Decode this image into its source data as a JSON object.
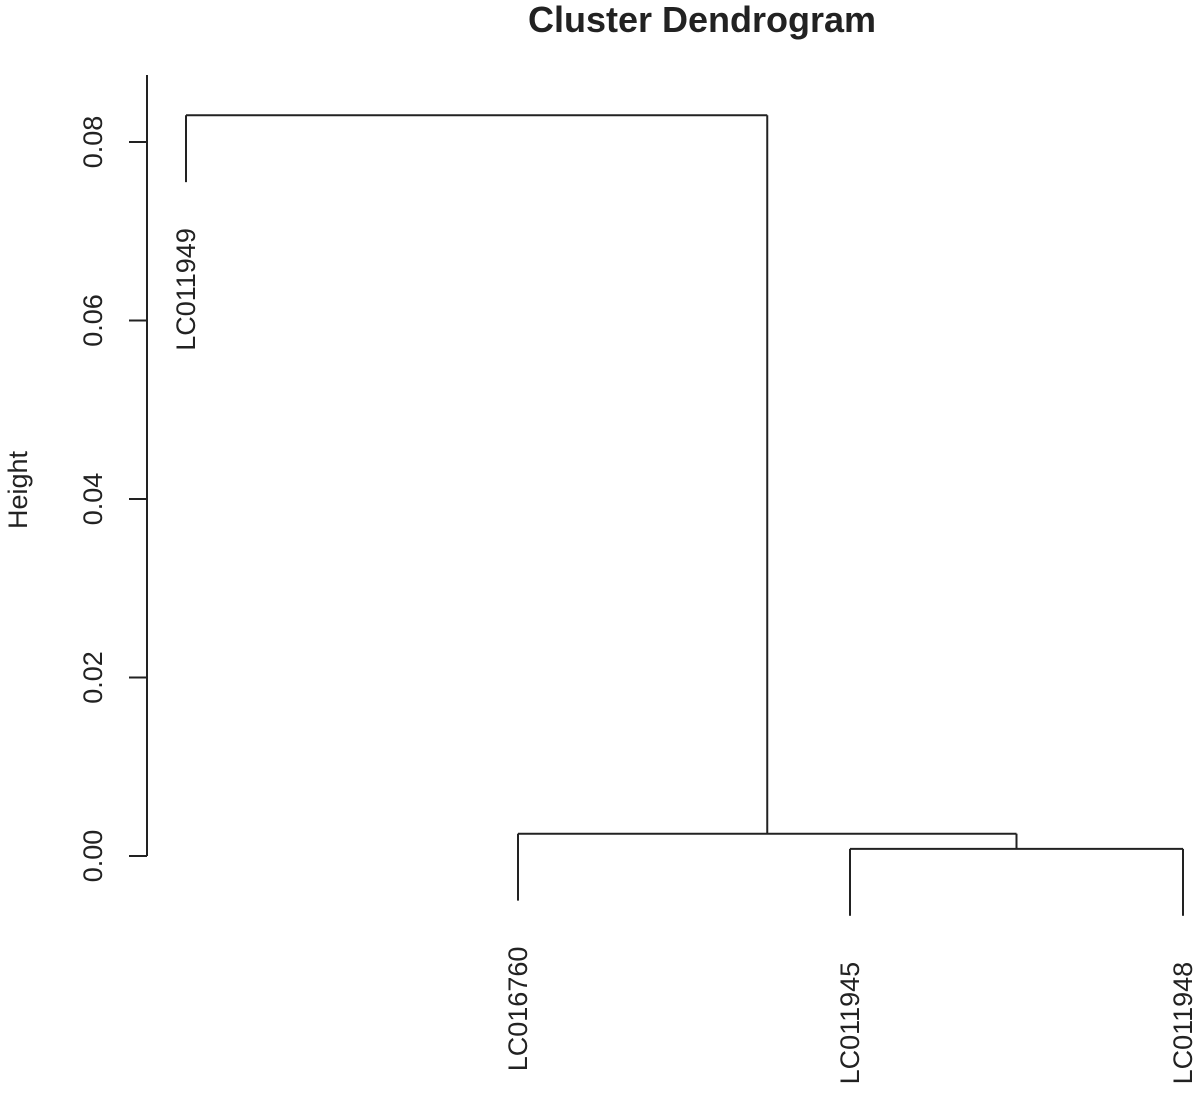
{
  "chart_data": {
    "type": "dendrogram",
    "title": "Cluster Dendrogram",
    "ylabel": "Height",
    "ylim": [
      0,
      0.08
    ],
    "yticks": [
      {
        "value": 0.0,
        "label": "0.00"
      },
      {
        "value": 0.02,
        "label": "0.02"
      },
      {
        "value": 0.04,
        "label": "0.04"
      },
      {
        "value": 0.06,
        "label": "0.06"
      },
      {
        "value": 0.08,
        "label": "0.08"
      }
    ],
    "leaves": [
      "LC011949",
      "LC016760",
      "LC011945",
      "LC011948"
    ],
    "merges": [
      {
        "left": "LC011945",
        "right": "LC011948",
        "height": 0.0008
      },
      {
        "left": "LC016760",
        "right": "merge-1",
        "height": 0.0025
      },
      {
        "left": "LC011949",
        "right": "merge-2",
        "height": 0.083
      }
    ]
  }
}
